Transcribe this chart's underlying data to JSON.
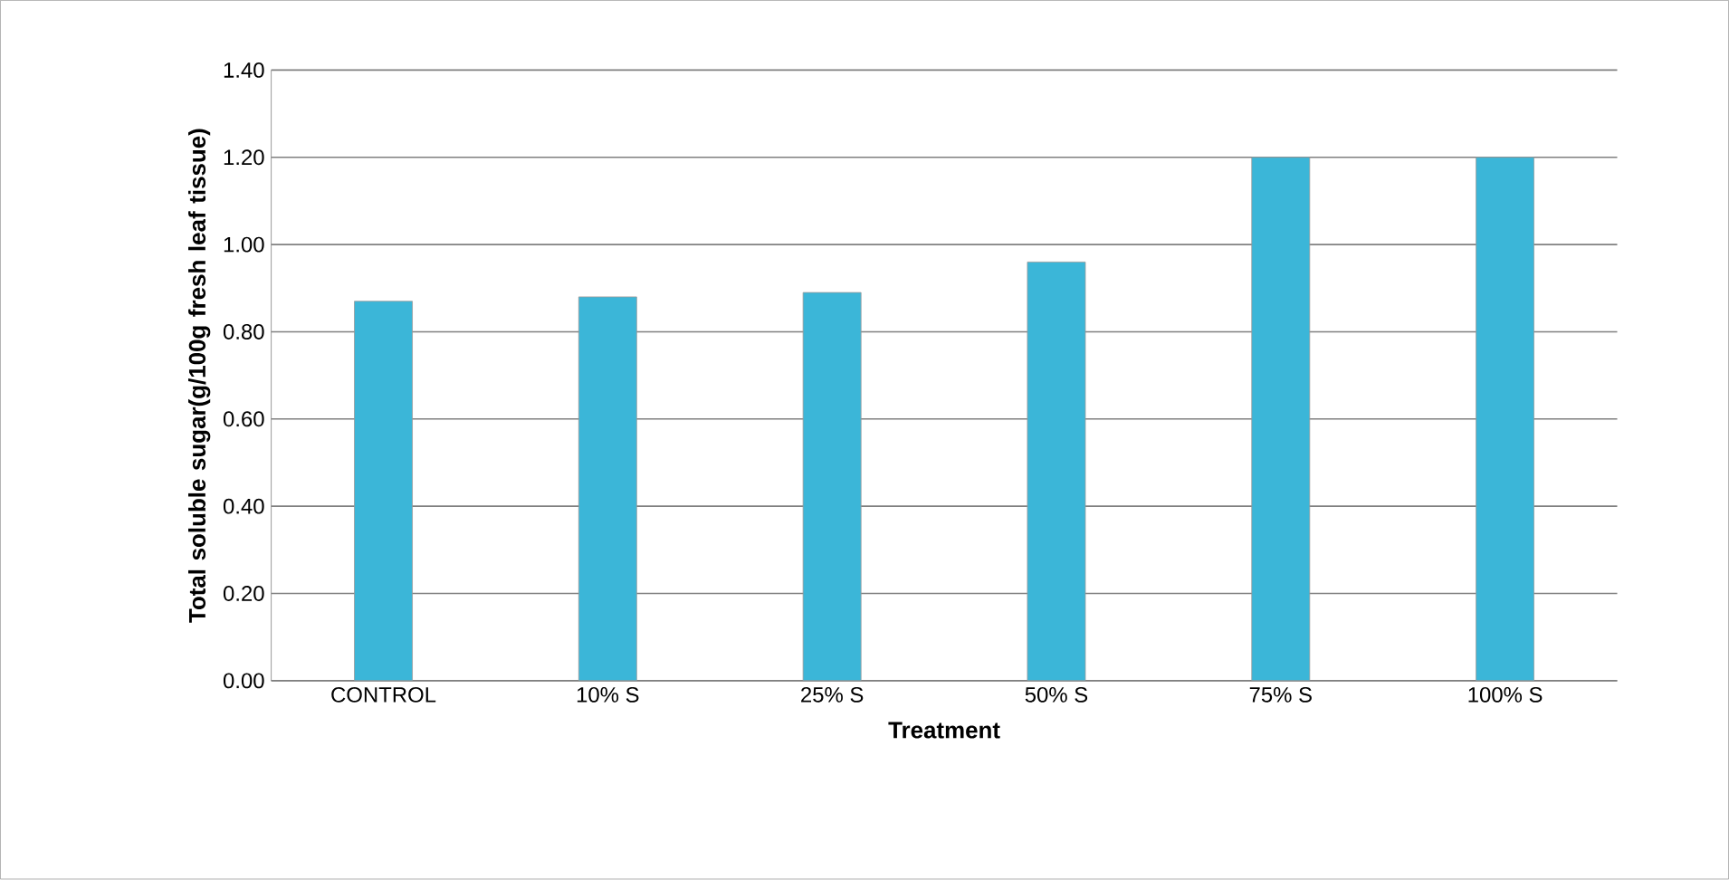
{
  "chart_data": {
    "type": "bar",
    "xlabel": "Treatment",
    "ylabel": "Total soluble sugar(g/100g fresh leaf tissue)",
    "categories": [
      "CONTROL",
      "10% S",
      "25% S",
      "50% S",
      "75% S",
      "100% S"
    ],
    "values": [
      0.87,
      0.88,
      0.89,
      0.96,
      1.2,
      1.2
    ],
    "color": "#3bb6d8",
    "ylim": [
      0,
      1.4
    ],
    "yticks": [
      {
        "value": 0,
        "label": "0.00"
      },
      {
        "value": 0.2,
        "label": "0.20"
      },
      {
        "value": 0.4,
        "label": "0.40"
      },
      {
        "value": 0.6,
        "label": "0.60"
      },
      {
        "value": 0.8,
        "label": "0.80"
      },
      {
        "value": 1.0,
        "label": "1.00"
      },
      {
        "value": 1.2,
        "label": "1.20"
      },
      {
        "value": 1.4,
        "label": "1.40"
      }
    ],
    "grid": "y"
  }
}
